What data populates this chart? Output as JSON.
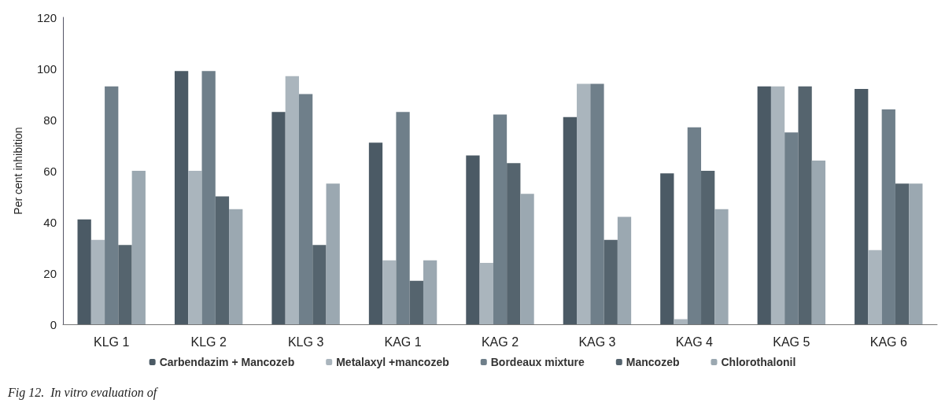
{
  "chart_data": {
    "type": "bar",
    "ylabel": "Per cent inhibition",
    "categories": [
      "KLG 1",
      "KLG 2",
      "KLG 3",
      "KAG 1",
      "KAG 2",
      "KAG 3",
      "KAG 4",
      "KAG 5",
      "KAG 6"
    ],
    "series": [
      {
        "name": "Carbendazim + Mancozeb",
        "color": "#4b5a65",
        "values": [
          41,
          99,
          83,
          71,
          66,
          81,
          59,
          93,
          92
        ]
      },
      {
        "name": "Metalaxyl +mancozeb",
        "color": "#aab5bd",
        "values": [
          33,
          60,
          97,
          25,
          24,
          94,
          2,
          93,
          29
        ]
      },
      {
        "name": "Bordeaux mixture",
        "color": "#6f7f8a",
        "values": [
          93,
          99,
          90,
          83,
          82,
          94,
          77,
          75,
          84
        ]
      },
      {
        "name": "Mancozeb",
        "color": "#55646e",
        "values": [
          31,
          50,
          31,
          17,
          63,
          33,
          60,
          93,
          55
        ]
      },
      {
        "name": "Chlorothalonil",
        "color": "#9ba8b1",
        "values": [
          60,
          45,
          55,
          25,
          51,
          42,
          45,
          64,
          55
        ]
      }
    ],
    "ylim": [
      0,
      120
    ],
    "yticks": [
      0,
      20,
      40,
      60,
      80,
      100,
      120
    ],
    "grid": false,
    "legend": "bottom",
    "annotations": [
      "Fig 12.  In vitro evaluation of"
    ]
  }
}
